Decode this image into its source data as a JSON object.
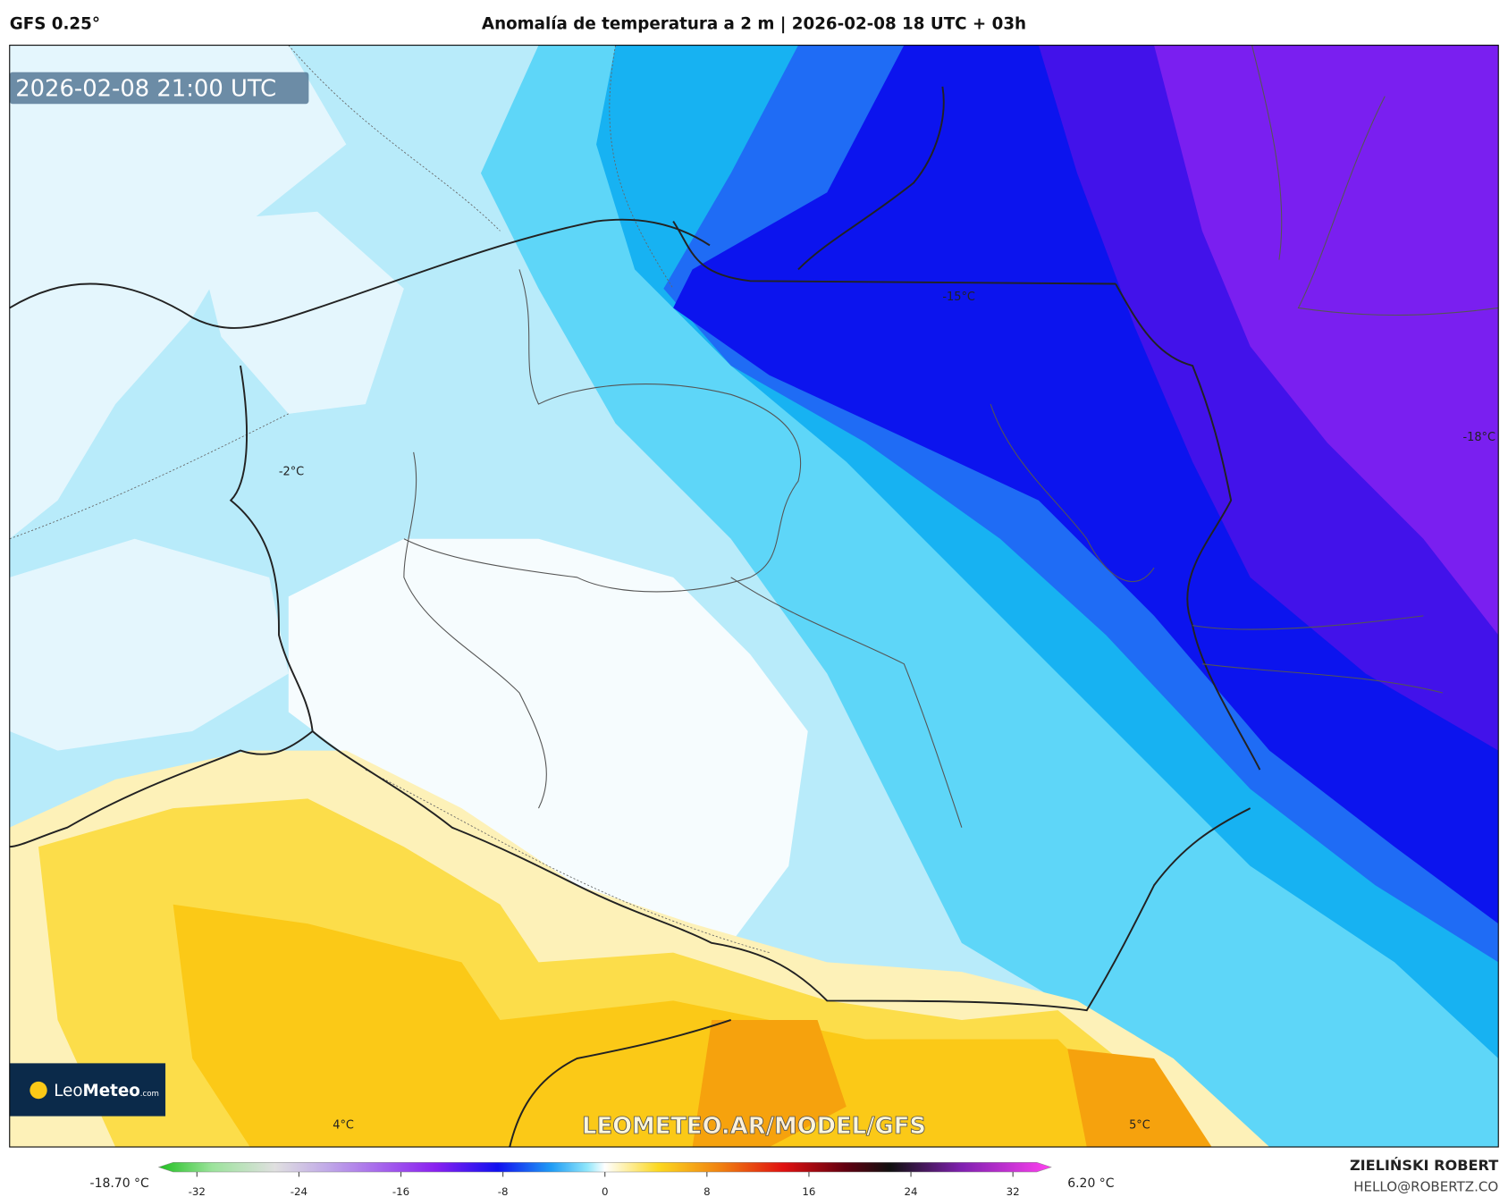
{
  "header": {
    "model": "GFS 0.25°",
    "title": "Anomalía de temperatura a 2 m | 2026-02-08 18 UTC + 03h"
  },
  "map": {
    "valid_time": "2026-02-08 21:00 UTC",
    "labels": [
      "-15°C",
      "-2°C",
      "-18°C",
      "4°C",
      "5°C"
    ],
    "watermark": "LEOMETEO.AR/MODEL/GFS",
    "logo": {
      "name_light": "Leo",
      "name_bold": "Meteo",
      "suffix": ".com"
    }
  },
  "colorbar": {
    "min_label": "-18.70 °C",
    "max_label": "6.20 °C",
    "lim": [
      -35,
      35
    ],
    "ticks": [
      -32,
      -24,
      -16,
      -8,
      0,
      8,
      16,
      24,
      32
    ]
  },
  "footer": {
    "author": "ZIELIŃSKI ROBERT",
    "email": "HELLO@ROBERTZ.CO"
  }
}
